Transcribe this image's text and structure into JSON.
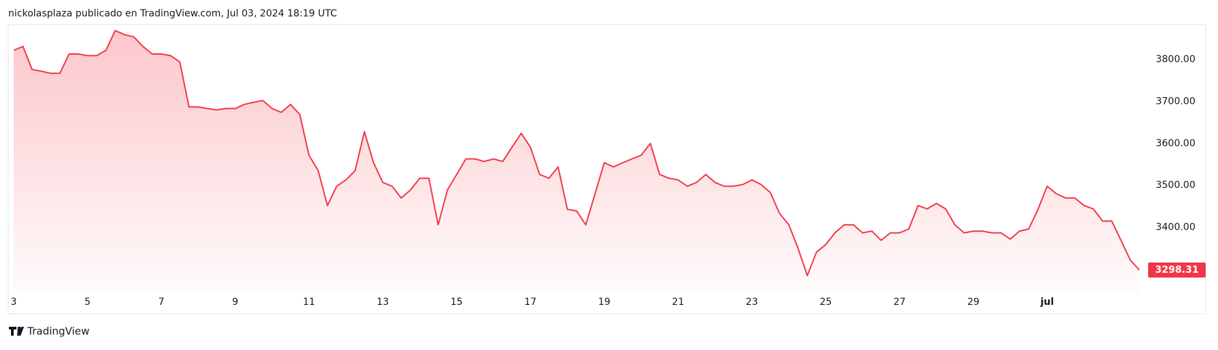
{
  "header": {
    "text": "nickolasplaza publicado en TradingView.com, Jul 03, 2024 18:19 UTC"
  },
  "footer": {
    "brand": "TradingView"
  },
  "chart_data": {
    "type": "line",
    "categories": [
      "3",
      null,
      null,
      null,
      null,
      null,
      null,
      null,
      "5",
      null,
      null,
      null,
      null,
      null,
      null,
      null,
      "7",
      null,
      null,
      null,
      null,
      null,
      null,
      null,
      "9",
      null,
      null,
      null,
      null,
      null,
      null,
      null,
      "11",
      null,
      null,
      null,
      null,
      null,
      null,
      null,
      "13",
      null,
      null,
      null,
      null,
      null,
      null,
      null,
      "15",
      null,
      null,
      null,
      null,
      null,
      null,
      null,
      "17",
      null,
      null,
      null,
      null,
      null,
      null,
      null,
      "19",
      null,
      null,
      null,
      null,
      null,
      null,
      null,
      "21",
      null,
      null,
      null,
      null,
      null,
      null,
      null,
      "23",
      null,
      null,
      null,
      null,
      null,
      null,
      null,
      "25",
      null,
      null,
      null,
      null,
      null,
      null,
      null,
      "27",
      null,
      null,
      null,
      null,
      null,
      null,
      null,
      "29",
      null,
      null,
      null,
      null,
      null,
      null,
      null,
      "jul",
      null,
      null,
      null,
      null,
      null,
      null,
      null,
      null,
      null,
      null
    ],
    "series": [
      {
        "color": "#f23645",
        "values": [
          3822,
          3831,
          3776,
          3772,
          3767,
          3767,
          3813,
          3813,
          3809,
          3809,
          3822,
          3869,
          3859,
          3854,
          3831,
          3813,
          3813,
          3809,
          3794,
          3687,
          3687,
          3683,
          3680,
          3683,
          3683,
          3693,
          3698,
          3702,
          3683,
          3674,
          3693,
          3669,
          3572,
          3535,
          3452,
          3498,
          3513,
          3535,
          3628,
          3554,
          3507,
          3498,
          3470,
          3489,
          3517,
          3517,
          3406,
          3489,
          3526,
          3563,
          3563,
          3557,
          3563,
          3557,
          3591,
          3624,
          3591,
          3526,
          3517,
          3544,
          3443,
          3439,
          3406,
          3480,
          3554,
          3544,
          3554,
          3563,
          3572,
          3600,
          3526,
          3517,
          3513,
          3498,
          3507,
          3526,
          3507,
          3498,
          3498,
          3502,
          3513,
          3502,
          3483,
          3433,
          3406,
          3350,
          3285,
          3341,
          3359,
          3387,
          3406,
          3406,
          3387,
          3391,
          3369,
          3387,
          3387,
          3396,
          3452,
          3444,
          3457,
          3444,
          3406,
          3387,
          3391,
          3391,
          3387,
          3387,
          3372,
          3391,
          3396,
          3443,
          3498,
          3480,
          3470,
          3470,
          3452,
          3444,
          3415,
          3415,
          3369,
          3322,
          3298.31
        ]
      }
    ],
    "ylim": [
      3243,
      3883
    ],
    "yticks": [
      {
        "value": 3400,
        "label": "3400.00"
      },
      {
        "value": 3500,
        "label": "3500.00"
      },
      {
        "value": 3600,
        "label": "3600.00"
      },
      {
        "value": 3700,
        "label": "3700.00"
      },
      {
        "value": 3800,
        "label": "3800.00"
      }
    ],
    "grid": false
  }
}
